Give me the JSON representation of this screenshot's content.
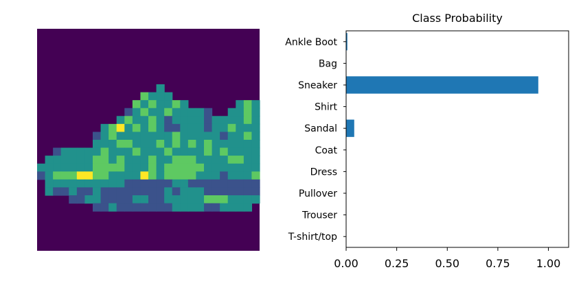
{
  "image_panel": {
    "description_colormap": "viridis",
    "colors": {
      "background": "#440154",
      "dark": "#3b528b",
      "mid": "#21918c",
      "green": "#5ec962",
      "yellow": "#fde725"
    }
  },
  "chart_data": {
    "type": "bar",
    "orientation": "horizontal",
    "title": "Class Probability",
    "categories": [
      "T-shirt/top",
      "Trouser",
      "Pullover",
      "Dress",
      "Coat",
      "Sandal",
      "Shirt",
      "Sneaker",
      "Bag",
      "Ankle Boot"
    ],
    "values": [
      0.0,
      0.0,
      0.0,
      0.0,
      0.0,
      0.04,
      0.0,
      0.95,
      0.0,
      0.006
    ],
    "xlim": [
      0,
      1.1
    ],
    "xticks": [
      0.0,
      0.25,
      0.5,
      0.75,
      1.0
    ],
    "xtick_labels": [
      "0.00",
      "0.25",
      "0.50",
      "0.75",
      "1.00"
    ],
    "xlabel": "",
    "ylabel": "",
    "bar_color": "#1f77b4"
  }
}
